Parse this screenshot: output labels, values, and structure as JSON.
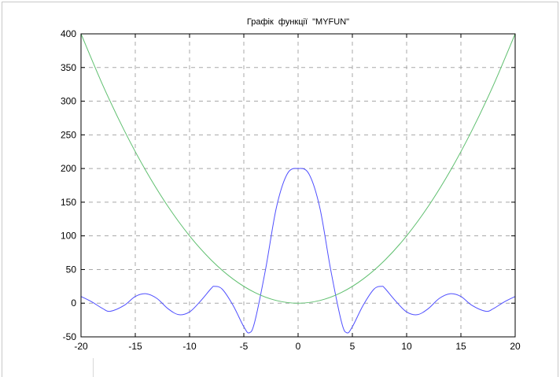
{
  "chart_data": {
    "type": "line",
    "title": "Графік  функції  \"MYFUN\"",
    "xlabel": "",
    "ylabel": "",
    "xlim": [
      -20,
      20
    ],
    "ylim": [
      -50,
      400
    ],
    "xticks": [
      -20,
      -15,
      -10,
      -5,
      0,
      5,
      10,
      15,
      20
    ],
    "yticks": [
      -50,
      0,
      50,
      100,
      150,
      200,
      250,
      300,
      350,
      400
    ],
    "xtick_labels": [
      "-20",
      "-15",
      "-10",
      "-5",
      "0",
      "5",
      "10",
      "15",
      "20"
    ],
    "ytick_labels": [
      "-50",
      "0",
      "50",
      "100",
      "150",
      "200",
      "250",
      "300",
      "350",
      "400"
    ],
    "grid": true,
    "legend": "none",
    "series": [
      {
        "color": "#4f4fff",
        "x": [
          -20,
          -19,
          -18,
          -17.3,
          -16,
          -15,
          -14,
          -13,
          -12,
          -11,
          -10,
          -9,
          -8,
          -7.7,
          -7,
          -6,
          -5,
          -4.5,
          -4,
          -3,
          -2,
          -1,
          0,
          1,
          2,
          3,
          4,
          4.5,
          5,
          6,
          7,
          7.7,
          8,
          9,
          10,
          11,
          12,
          13,
          14,
          15,
          16,
          17.3,
          18,
          19,
          20
        ],
        "y": [
          10,
          2,
          -8,
          -12,
          -3,
          10,
          14,
          7,
          -8,
          -17,
          -13,
          3,
          22,
          25,
          21,
          -3,
          -35,
          -44,
          -28,
          50,
          142,
          192,
          200,
          192,
          142,
          50,
          -28,
          -44,
          -35,
          -3,
          21,
          25,
          22,
          3,
          -13,
          -17,
          -8,
          7,
          14,
          10,
          -3,
          -12,
          -8,
          2,
          10
        ]
      },
      {
        "color": "#5fbf6f",
        "x": [
          -20,
          -18,
          -16,
          -14,
          -12,
          -10,
          -8,
          -6,
          -4,
          -2,
          0,
          2,
          4,
          6,
          8,
          10,
          12,
          14,
          16,
          18,
          20
        ],
        "y": [
          400,
          324,
          256,
          196,
          144,
          100,
          64,
          36,
          16,
          4,
          0,
          4,
          16,
          36,
          64,
          100,
          144,
          196,
          256,
          324,
          400
        ]
      }
    ]
  }
}
